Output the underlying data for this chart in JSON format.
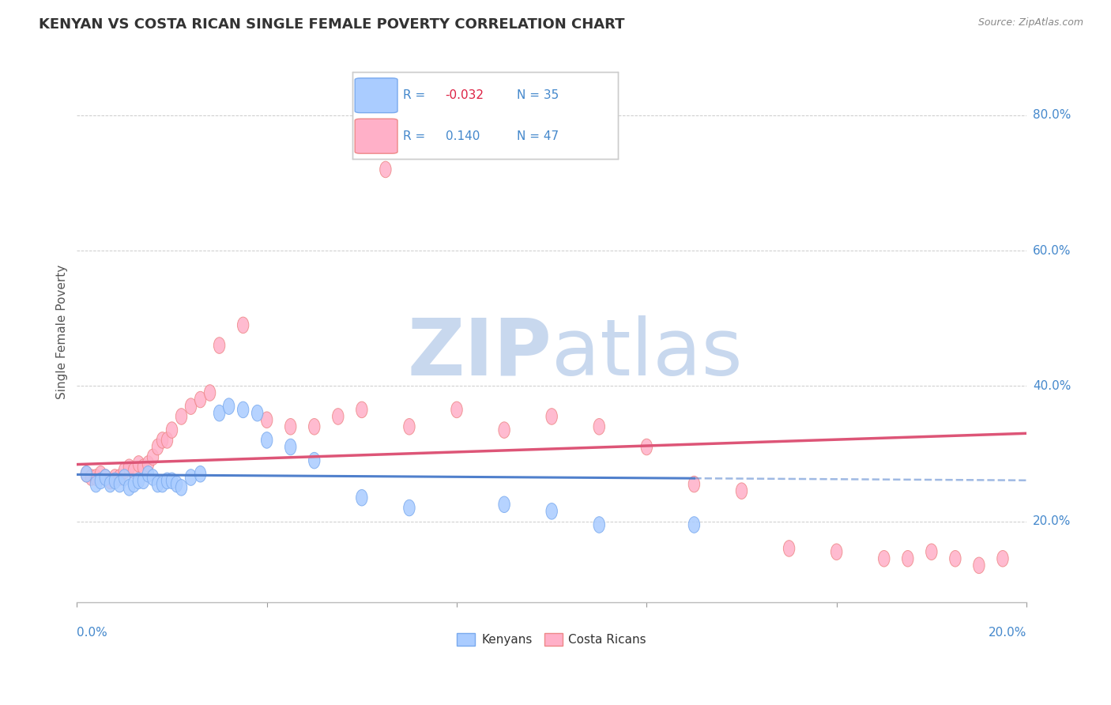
{
  "title": "KENYAN VS COSTA RICAN SINGLE FEMALE POVERTY CORRELATION CHART",
  "source": "Source: ZipAtlas.com",
  "ylabel": "Single Female Poverty",
  "xlim": [
    0.0,
    0.2
  ],
  "ylim": [
    0.08,
    0.88
  ],
  "yticks": [
    0.2,
    0.4,
    0.6,
    0.8
  ],
  "ytick_labels": [
    "20.0%",
    "40.0%",
    "60.0%",
    "80.0%"
  ],
  "legend_r_kenya": "-0.032",
  "legend_n_kenya": "35",
  "legend_r_cr": "0.140",
  "legend_n_cr": "47",
  "kenya_color": "#aaccff",
  "kenya_edge_color": "#7aaaee",
  "cr_color": "#ffb0c8",
  "cr_edge_color": "#ee8888",
  "kenya_line_color": "#5080cc",
  "cr_line_color": "#dd5577",
  "kenya_x": [
    0.002,
    0.004,
    0.005,
    0.006,
    0.007,
    0.008,
    0.009,
    0.01,
    0.011,
    0.012,
    0.013,
    0.014,
    0.015,
    0.016,
    0.017,
    0.018,
    0.019,
    0.02,
    0.021,
    0.022,
    0.024,
    0.026,
    0.03,
    0.032,
    0.035,
    0.038,
    0.04,
    0.045,
    0.05,
    0.06,
    0.07,
    0.09,
    0.1,
    0.11,
    0.13
  ],
  "kenya_y": [
    0.27,
    0.255,
    0.26,
    0.265,
    0.255,
    0.26,
    0.255,
    0.265,
    0.25,
    0.255,
    0.26,
    0.26,
    0.27,
    0.265,
    0.255,
    0.255,
    0.26,
    0.26,
    0.255,
    0.25,
    0.265,
    0.27,
    0.36,
    0.37,
    0.365,
    0.36,
    0.32,
    0.31,
    0.29,
    0.235,
    0.22,
    0.225,
    0.215,
    0.195,
    0.195
  ],
  "cr_x": [
    0.002,
    0.003,
    0.004,
    0.005,
    0.006,
    0.007,
    0.008,
    0.009,
    0.01,
    0.011,
    0.012,
    0.013,
    0.014,
    0.015,
    0.016,
    0.017,
    0.018,
    0.019,
    0.02,
    0.022,
    0.024,
    0.026,
    0.028,
    0.03,
    0.035,
    0.04,
    0.045,
    0.05,
    0.055,
    0.06,
    0.065,
    0.07,
    0.08,
    0.09,
    0.1,
    0.11,
    0.12,
    0.13,
    0.14,
    0.15,
    0.16,
    0.17,
    0.175,
    0.18,
    0.185,
    0.19,
    0.195
  ],
  "cr_y": [
    0.27,
    0.265,
    0.265,
    0.27,
    0.265,
    0.26,
    0.265,
    0.265,
    0.275,
    0.28,
    0.275,
    0.285,
    0.28,
    0.285,
    0.295,
    0.31,
    0.32,
    0.32,
    0.335,
    0.355,
    0.37,
    0.38,
    0.39,
    0.46,
    0.49,
    0.35,
    0.34,
    0.34,
    0.355,
    0.365,
    0.72,
    0.34,
    0.365,
    0.335,
    0.355,
    0.34,
    0.31,
    0.255,
    0.245,
    0.16,
    0.155,
    0.145,
    0.145,
    0.155,
    0.145,
    0.135,
    0.145
  ],
  "watermark_zip": "ZIP",
  "watermark_atlas": "atlas",
  "watermark_color": "#c8d8ee"
}
